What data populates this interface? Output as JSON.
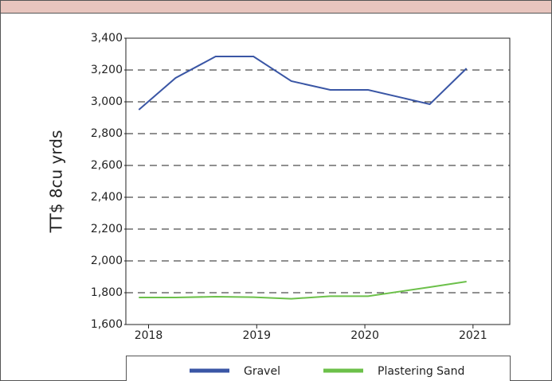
{
  "chart_data": {
    "type": "line",
    "y_label": "TT$ 8cu yrds",
    "xlim": [
      2017.79,
      2021.34
    ],
    "xticks": [
      2018,
      2019,
      2020,
      2021
    ],
    "ylim": [
      1600,
      3400
    ],
    "yticks": [
      {
        "value": 1600,
        "label": "1,600"
      },
      {
        "value": 1800,
        "label": "1,800"
      },
      {
        "value": 2000,
        "label": "2,000"
      },
      {
        "value": 2200,
        "label": "2,200"
      },
      {
        "value": 2400,
        "label": "2,400"
      },
      {
        "value": 2600,
        "label": "2,600"
      },
      {
        "value": 2800,
        "label": "2,800"
      },
      {
        "value": 3000,
        "label": "3,000"
      },
      {
        "value": 3200,
        "label": "3,200"
      },
      {
        "value": 3400,
        "label": "3,400"
      }
    ],
    "grid": true,
    "x": [
      2017.91,
      2018.25,
      2018.62,
      2018.97,
      2019.32,
      2019.68,
      2020.03,
      2020.6,
      2020.94
    ],
    "series": [
      {
        "name": "Gravel",
        "color": "#3a56a5",
        "values": [
          2950,
          3150,
          3285,
          3285,
          3130,
          3075,
          3075,
          2985,
          3210
        ]
      },
      {
        "name": "Plastering Sand",
        "color": "#6cc04a",
        "values": [
          1770,
          1770,
          1775,
          1772,
          1762,
          1778,
          1778,
          1835,
          1870
        ]
      }
    ]
  }
}
